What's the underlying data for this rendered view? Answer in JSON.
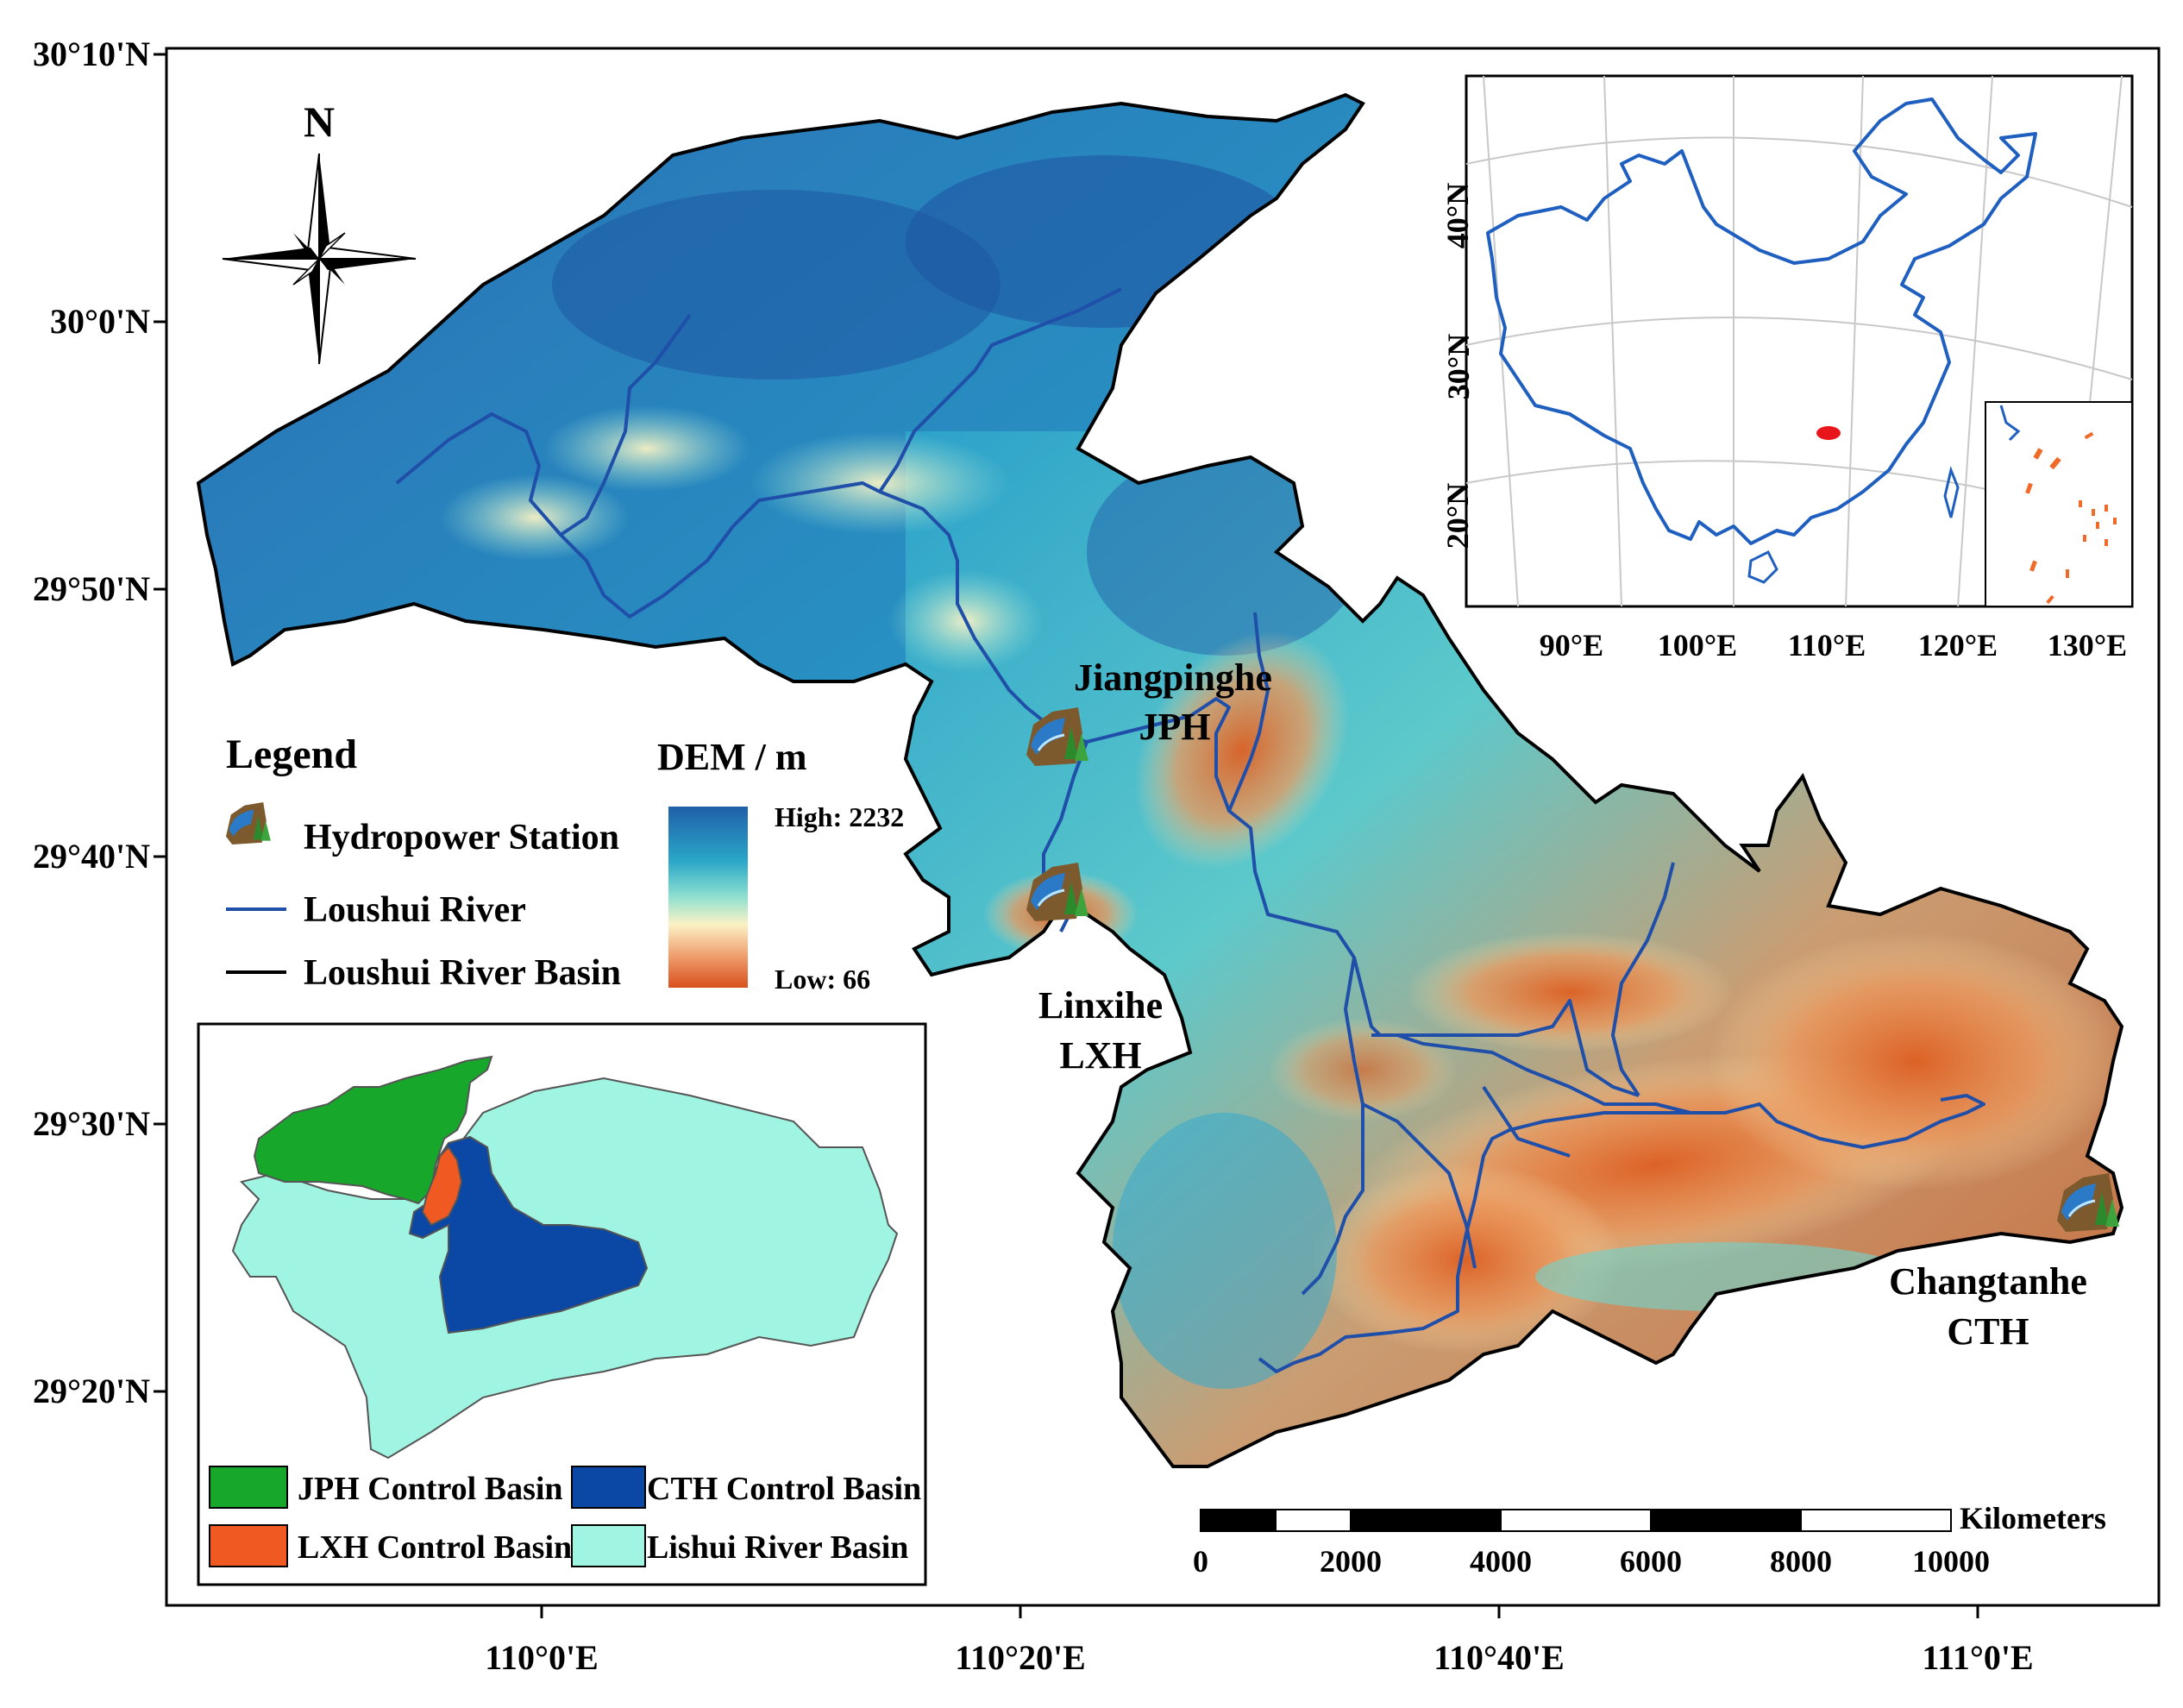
{
  "axes": {
    "lat_ticks": [
      "30°10'N",
      "30°0'N",
      "29°50'N",
      "29°40'N",
      "29°30'N",
      "29°20'N"
    ],
    "lon_ticks": [
      "110°0'E",
      "110°20'E",
      "110°40'E",
      "111°0'E"
    ]
  },
  "north_arrow": {
    "label": "N"
  },
  "stations": [
    {
      "name": "Jiangpinghe",
      "code": "JPH"
    },
    {
      "name": "Linxihe",
      "code": "LXH"
    },
    {
      "name": "Changtanhe",
      "code": "CTH"
    }
  ],
  "legend": {
    "title": "Legend",
    "items": [
      "Hydropower Station",
      "Loushui River",
      "Loushui River Basin"
    ],
    "dem_title": "DEM / m",
    "dem_high": "High: 2232",
    "dem_low": "Low: 66",
    "colors": {
      "river": "#1f4fa8",
      "boundary": "#000000"
    }
  },
  "inset_china": {
    "lat_ticks": [
      "40°N",
      "30°N",
      "20°N"
    ],
    "lon_ticks": [
      "90°E",
      "100°E",
      "110°E",
      "120°E",
      "130°E"
    ],
    "colors": {
      "outline": "#1f5fc0",
      "study_area": "#e8161b",
      "islands": "#f06a2a"
    }
  },
  "inset_basins": {
    "items": [
      "JPH Control Basin",
      "CTH Control Basin",
      "LXH Control Basin",
      "Lishui River Basin"
    ],
    "colors": {
      "jph": "#17a82b",
      "cth": "#0b47a5",
      "lxh": "#f05a22",
      "lishui": "#a0f5e2"
    }
  },
  "scale_bar": {
    "unit": "Kilometers",
    "ticks": [
      "0",
      "2000",
      "4000",
      "6000",
      "8000",
      "10000"
    ]
  }
}
